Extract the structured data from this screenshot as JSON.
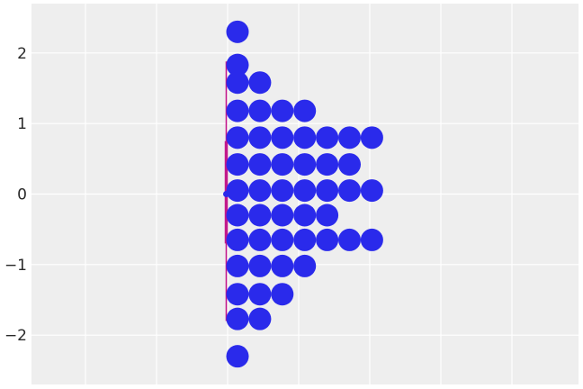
{
  "chart_data": {
    "type": "scatter",
    "title": "",
    "xlabel": "",
    "ylabel": "",
    "ylim": [
      -2.7,
      2.7
    ],
    "grid": true,
    "legend": "none",
    "yticks": [
      {
        "value": 2,
        "label": "2"
      },
      {
        "value": 1,
        "label": "1"
      },
      {
        "value": 0,
        "label": "0"
      },
      {
        "value": -1,
        "label": "−1"
      },
      {
        "value": -2,
        "label": "−2"
      }
    ],
    "colors": {
      "background": "#eeeeee",
      "grid": "#ffffff",
      "dots": "#2a2aeb",
      "interval": "#c2188b"
    },
    "dot_rows": [
      {
        "y": 2.3,
        "count": 1
      },
      {
        "y": 1.83,
        "count": 1
      },
      {
        "y": 1.58,
        "count": 2
      },
      {
        "y": 1.18,
        "count": 4
      },
      {
        "y": 0.8,
        "count": 7
      },
      {
        "y": 0.42,
        "count": 6
      },
      {
        "y": 0.05,
        "count": 7
      },
      {
        "y": -0.3,
        "count": 5
      },
      {
        "y": -0.65,
        "count": 7
      },
      {
        "y": -1.02,
        "count": 4
      },
      {
        "y": -1.42,
        "count": 3
      },
      {
        "y": -1.77,
        "count": 2
      },
      {
        "y": -2.3,
        "count": 1
      }
    ],
    "interval": {
      "median": 0.0,
      "inner": [
        -0.7,
        0.75
      ],
      "outer": [
        -1.8,
        1.88
      ]
    }
  }
}
